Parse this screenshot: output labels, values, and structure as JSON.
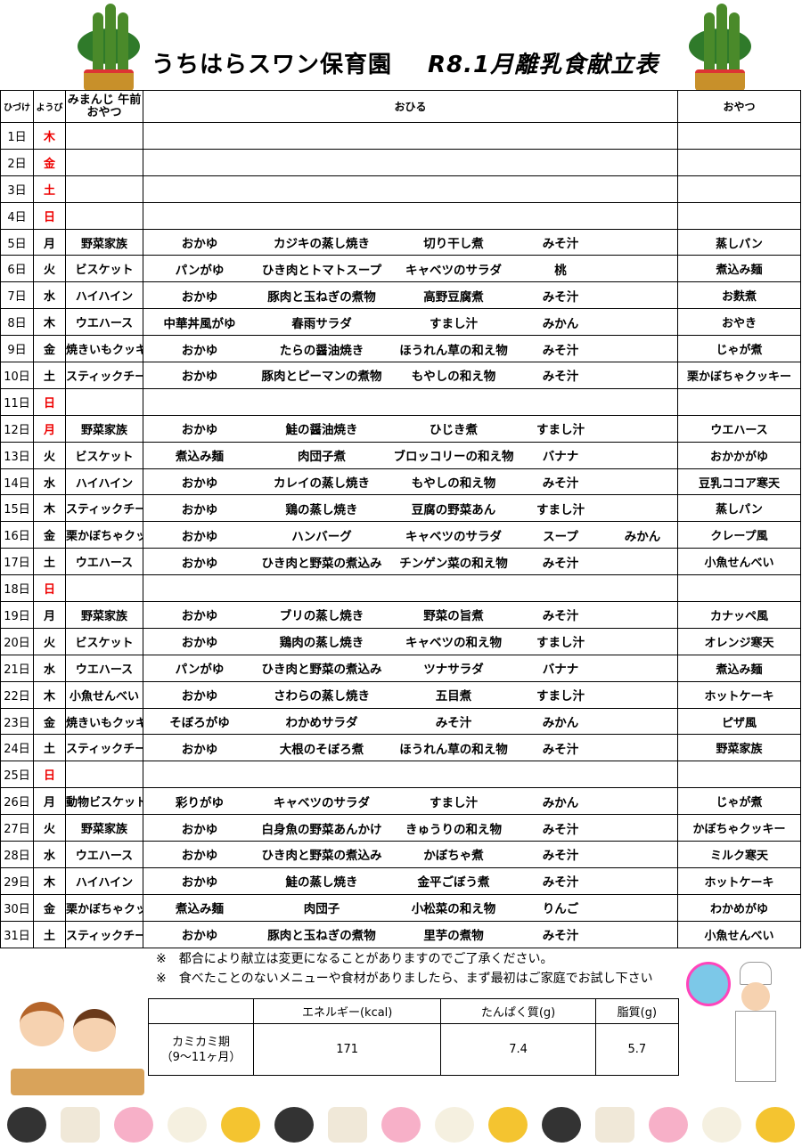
{
  "title": {
    "school": "うちはらスワン保育園",
    "menu": "R8.1月離乳食献立表"
  },
  "headers": {
    "day": "ひづけ",
    "dow": "ようび",
    "am": "みまんじ 午前おやつ",
    "lunch": "おひる",
    "snack": "おやつ"
  },
  "colors": {
    "holiday_red": "#e00000"
  },
  "rows": [
    {
      "day": "1日",
      "dow": "木",
      "red": true,
      "am": "",
      "lunch": [],
      "snack": ""
    },
    {
      "day": "2日",
      "dow": "金",
      "red": true,
      "am": "",
      "lunch": [],
      "snack": ""
    },
    {
      "day": "3日",
      "dow": "土",
      "red": true,
      "am": "",
      "lunch": [],
      "snack": ""
    },
    {
      "day": "4日",
      "dow": "日",
      "red": true,
      "am": "",
      "lunch": [],
      "snack": ""
    },
    {
      "day": "5日",
      "dow": "月",
      "red": false,
      "am": "野菜家族",
      "lunch": [
        "おかゆ",
        "カジキの蒸し焼き",
        "切り干し煮",
        "みそ汁"
      ],
      "snack": "蒸しパン"
    },
    {
      "day": "6日",
      "dow": "火",
      "red": false,
      "am": "ビスケット",
      "lunch": [
        "パンがゆ",
        "ひき肉とトマトスープ",
        "キャベツのサラダ",
        "桃"
      ],
      "snack": "煮込み麺"
    },
    {
      "day": "7日",
      "dow": "水",
      "red": false,
      "am": "ハイハイン",
      "lunch": [
        "おかゆ",
        "豚肉と玉ねぎの煮物",
        "高野豆腐煮",
        "みそ汁"
      ],
      "snack": "お麩煮"
    },
    {
      "day": "8日",
      "dow": "木",
      "red": false,
      "am": "ウエハース",
      "lunch": [
        "中華丼風がゆ",
        "春雨サラダ",
        "すまし汁",
        "みかん"
      ],
      "snack": "おやき"
    },
    {
      "day": "9日",
      "dow": "金",
      "red": false,
      "am": "焼きいもクッキー",
      "lunch": [
        "おかゆ",
        "たらの醤油焼き",
        "ほうれん草の和え物",
        "みそ汁"
      ],
      "snack": "じゃが煮"
    },
    {
      "day": "10日",
      "dow": "土",
      "red": false,
      "am": "スティックチーズ",
      "lunch": [
        "おかゆ",
        "豚肉とピーマンの煮物",
        "もやしの和え物",
        "みそ汁"
      ],
      "snack": "栗かぼちゃクッキー"
    },
    {
      "day": "11日",
      "dow": "日",
      "red": true,
      "am": "",
      "lunch": [],
      "snack": ""
    },
    {
      "day": "12日",
      "dow": "月",
      "red": true,
      "am": "野菜家族",
      "lunch": [
        "おかゆ",
        "鮭の醤油焼き",
        "ひじき煮",
        "すまし汁"
      ],
      "snack": "ウエハース"
    },
    {
      "day": "13日",
      "dow": "火",
      "red": false,
      "am": "ビスケット",
      "lunch": [
        "煮込み麺",
        "肉団子煮",
        "ブロッコリーの和え物",
        "バナナ"
      ],
      "snack": "おかかがゆ"
    },
    {
      "day": "14日",
      "dow": "水",
      "red": false,
      "am": "ハイハイン",
      "lunch": [
        "おかゆ",
        "カレイの蒸し焼き",
        "もやしの和え物",
        "みそ汁"
      ],
      "snack": "豆乳ココア寒天"
    },
    {
      "day": "15日",
      "dow": "木",
      "red": false,
      "am": "スティックチーズ",
      "lunch": [
        "おかゆ",
        "鶏の蒸し焼き",
        "豆腐の野菜あん",
        "すまし汁"
      ],
      "snack": "蒸しパン"
    },
    {
      "day": "16日",
      "dow": "金",
      "red": false,
      "am": "栗かぼちゃクッキー",
      "lunch": [
        "おかゆ",
        "ハンバーグ",
        "キャベツのサラダ",
        "スープ",
        "みかん"
      ],
      "snack": "クレープ風"
    },
    {
      "day": "17日",
      "dow": "土",
      "red": false,
      "am": "ウエハース",
      "lunch": [
        "おかゆ",
        "ひき肉と野菜の煮込み",
        "チンゲン菜の和え物",
        "みそ汁"
      ],
      "snack": "小魚せんべい"
    },
    {
      "day": "18日",
      "dow": "日",
      "red": true,
      "am": "",
      "lunch": [],
      "snack": ""
    },
    {
      "day": "19日",
      "dow": "月",
      "red": false,
      "am": "野菜家族",
      "lunch": [
        "おかゆ",
        "ブリの蒸し焼き",
        "野菜の旨煮",
        "みそ汁"
      ],
      "snack": "カナッペ風"
    },
    {
      "day": "20日",
      "dow": "火",
      "red": false,
      "am": "ビスケット",
      "lunch": [
        "おかゆ",
        "鶏肉の蒸し焼き",
        "キャベツの和え物",
        "すまし汁"
      ],
      "snack": "オレンジ寒天"
    },
    {
      "day": "21日",
      "dow": "水",
      "red": false,
      "am": "ウエハース",
      "lunch": [
        "パンがゆ",
        "ひき肉と野菜の煮込み",
        "ツナサラダ",
        "バナナ"
      ],
      "snack": "煮込み麺"
    },
    {
      "day": "22日",
      "dow": "木",
      "red": false,
      "am": "小魚せんべい",
      "lunch": [
        "おかゆ",
        "さわらの蒸し焼き",
        "五目煮",
        "すまし汁"
      ],
      "snack": "ホットケーキ"
    },
    {
      "day": "23日",
      "dow": "金",
      "red": false,
      "am": "焼きいもクッキー",
      "lunch": [
        "そぼろがゆ",
        "わかめサラダ",
        "みそ汁",
        "みかん"
      ],
      "snack": "ピザ風"
    },
    {
      "day": "24日",
      "dow": "土",
      "red": false,
      "am": "スティックチーズ",
      "lunch": [
        "おかゆ",
        "大根のそぼろ煮",
        "ほうれん草の和え物",
        "みそ汁"
      ],
      "snack": "野菜家族"
    },
    {
      "day": "25日",
      "dow": "日",
      "red": true,
      "am": "",
      "lunch": [],
      "snack": ""
    },
    {
      "day": "26日",
      "dow": "月",
      "red": false,
      "am": "動物ビスケット",
      "lunch": [
        "彩りがゆ",
        "キャベツのサラダ",
        "すまし汁",
        "みかん"
      ],
      "snack": "じゃが煮"
    },
    {
      "day": "27日",
      "dow": "火",
      "red": false,
      "am": "野菜家族",
      "lunch": [
        "おかゆ",
        "白身魚の野菜あんかけ",
        "きゅうりの和え物",
        "みそ汁"
      ],
      "snack": "かぼちゃクッキー"
    },
    {
      "day": "28日",
      "dow": "水",
      "red": false,
      "am": "ウエハース",
      "lunch": [
        "おかゆ",
        "ひき肉と野菜の煮込み",
        "かぼちゃ煮",
        "みそ汁"
      ],
      "snack": "ミルク寒天"
    },
    {
      "day": "29日",
      "dow": "木",
      "red": false,
      "am": "ハイハイン",
      "lunch": [
        "おかゆ",
        "鮭の蒸し焼き",
        "金平ごぼう煮",
        "みそ汁"
      ],
      "snack": "ホットケーキ"
    },
    {
      "day": "30日",
      "dow": "金",
      "red": false,
      "am": "栗かぼちゃクッキー",
      "lunch": [
        "煮込み麺",
        "肉団子",
        "小松菜の和え物",
        "りんご"
      ],
      "snack": "わかめがゆ"
    },
    {
      "day": "31日",
      "dow": "土",
      "red": false,
      "am": "スティックチーズ",
      "lunch": [
        "おかゆ",
        "豚肉と玉ねぎの煮物",
        "里芋の煮物",
        "みそ汁"
      ],
      "snack": "小魚せんべい"
    }
  ],
  "notes": [
    "※　都合により献立は変更になることがありますのでご了承ください。",
    "※　食べたことのないメニューや食材がありましたら、まず最初はご家庭でお試し下さい"
  ],
  "nutrition": {
    "headers": [
      "エネルギー(kcal)",
      "たんぱく質(g)",
      "脂質(g)"
    ],
    "period": "カミカミ期",
    "period_age": "（9～11ヶ月）",
    "values": [
      "171",
      "7.4",
      "5.7"
    ]
  }
}
